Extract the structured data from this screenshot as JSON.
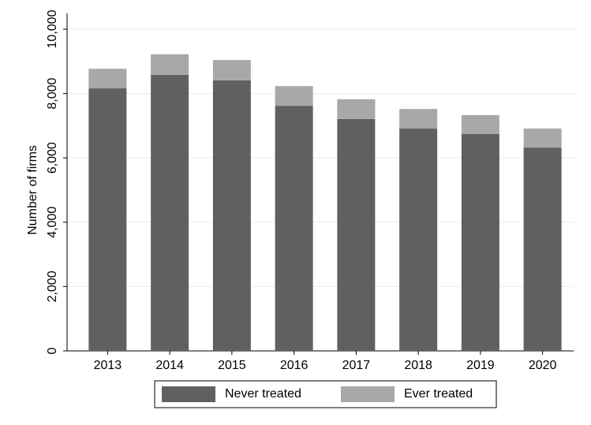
{
  "chart_data": {
    "type": "stacked_bar",
    "y_label": "Number of firms",
    "categories": [
      "2013",
      "2014",
      "2015",
      "2016",
      "2017",
      "2018",
      "2019",
      "2020"
    ],
    "series": [
      {
        "name": "Never treated",
        "color": "#606060",
        "values": [
          8160,
          8580,
          8410,
          7620,
          7210,
          6910,
          6740,
          6320
        ]
      },
      {
        "name": "Ever treated",
        "color": "#a8a8a8",
        "values": [
          610,
          640,
          630,
          610,
          610,
          610,
          590,
          590
        ]
      }
    ],
    "ylim": [
      0,
      10000
    ],
    "yticks": [
      0,
      {
        "value": 2000,
        "label": "2,000"
      },
      {
        "value": 4000,
        "label": "4,000"
      },
      {
        "value": 6000,
        "label": "6,000"
      },
      {
        "value": 8000,
        "label": "8,000"
      },
      {
        "value": 10000,
        "label": "10,000"
      }
    ],
    "grid": true,
    "legend": "bottom"
  }
}
